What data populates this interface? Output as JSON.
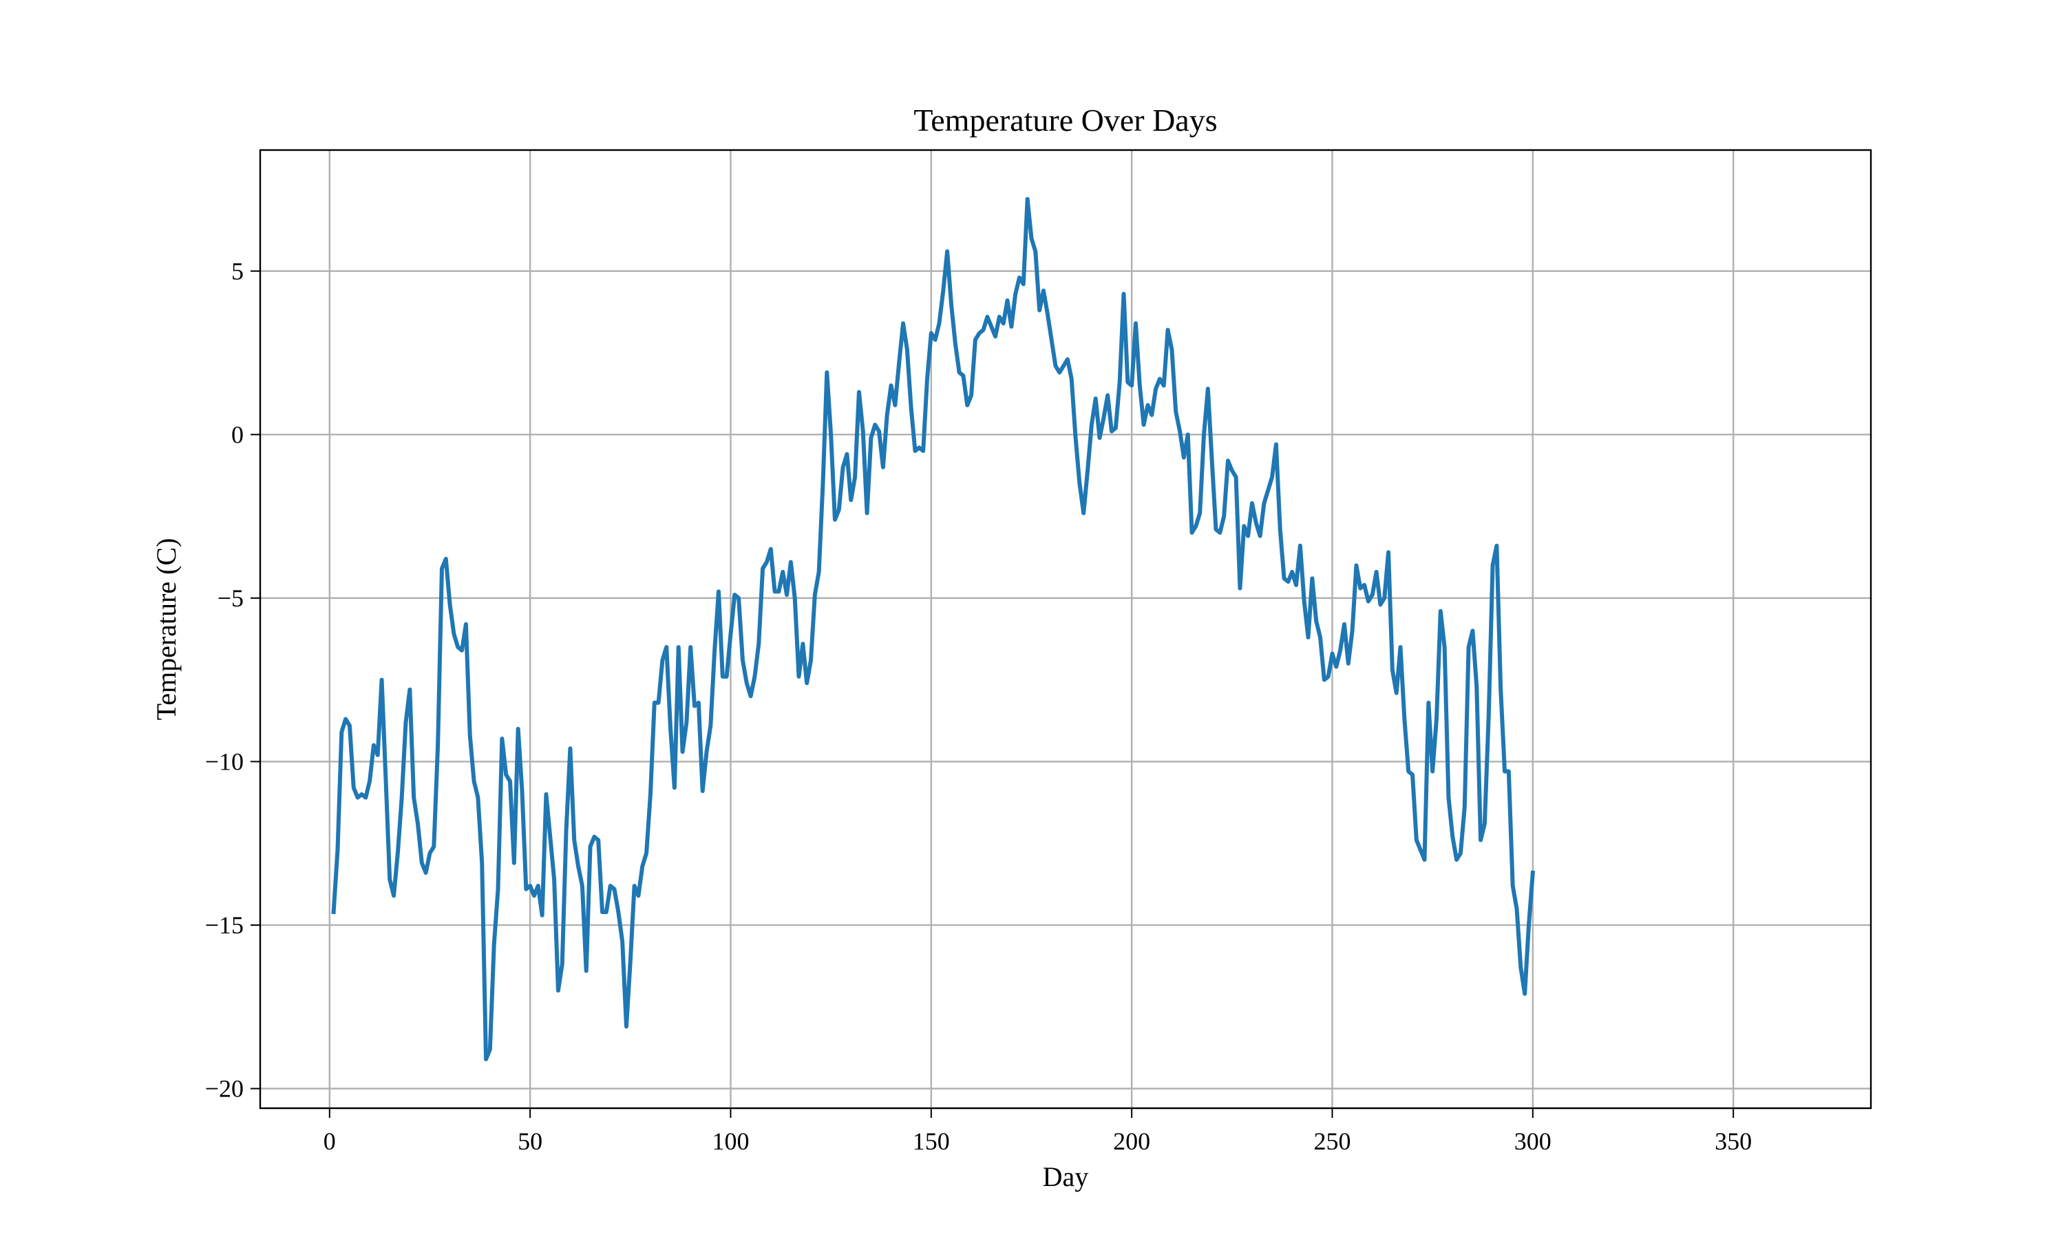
{
  "chart_data": {
    "type": "line",
    "title": "Temperature Over Days",
    "xlabel": "Day",
    "ylabel": "Temperature (C)",
    "xlim": [
      -17.3,
      384.3
    ],
    "ylim": [
      -20.6,
      8.7
    ],
    "xticks": [
      0,
      50,
      100,
      150,
      200,
      250,
      300,
      350
    ],
    "yticks": [
      -20,
      -15,
      -10,
      -5,
      0,
      5
    ],
    "ytick_labels": [
      "−20",
      "−15",
      "−10",
      "−5",
      "0",
      "5"
    ],
    "grid": true,
    "line_color": "#1f77b4",
    "series": [
      {
        "x_start": 1,
        "x_step": 1,
        "values": [
          -14.6,
          -12.7,
          -9.1,
          -8.7,
          -8.9,
          -10.8,
          -11.1,
          -11.0,
          -11.1,
          -10.6,
          -9.5,
          -9.8,
          -7.5,
          -10.5,
          -13.6,
          -14.1,
          -12.8,
          -11.1,
          -8.8,
          -7.8,
          -11.1,
          -11.9,
          -13.1,
          -13.4,
          -12.8,
          -12.6,
          -9.5,
          -4.1,
          -3.8,
          -5.2,
          -6.1,
          -6.5,
          -6.6,
          -5.8,
          -9.2,
          -10.6,
          -11.1,
          -13.1,
          -19.1,
          -18.8,
          -15.6,
          -13.9,
          -9.3,
          -10.4,
          -10.6,
          -13.1,
          -9.0,
          -10.9,
          -13.9,
          -13.8,
          -14.1,
          -13.8,
          -14.7,
          -11.0,
          -12.3,
          -13.6,
          -17.0,
          -16.2,
          -12.1,
          -9.6,
          -12.4,
          -13.2,
          -13.8,
          -16.4,
          -12.6,
          -12.3,
          -12.4,
          -14.6,
          -14.6,
          -13.8,
          -13.9,
          -14.6,
          -15.5,
          -18.1,
          -16.1,
          -13.8,
          -14.1,
          -13.2,
          -12.8,
          -11.0,
          -8.2,
          -8.2,
          -6.9,
          -6.5,
          -9.0,
          -10.8,
          -6.5,
          -9.7,
          -8.8,
          -6.5,
          -8.3,
          -8.2,
          -10.9,
          -9.7,
          -8.9,
          -6.6,
          -4.8,
          -7.4,
          -7.4,
          -6.1,
          -4.9,
          -5.0,
          -6.9,
          -7.6,
          -8.0,
          -7.4,
          -6.4,
          -4.1,
          -3.9,
          -3.5,
          -4.8,
          -4.8,
          -4.2,
          -4.9,
          -3.9,
          -5.0,
          -7.4,
          -6.4,
          -7.6,
          -6.9,
          -4.9,
          -4.2,
          -1.5,
          1.9,
          0.0,
          -2.6,
          -2.3,
          -1.0,
          -0.6,
          -2.0,
          -1.3,
          1.3,
          0.1,
          -2.4,
          -0.1,
          0.3,
          0.1,
          -1.0,
          0.6,
          1.5,
          0.9,
          2.2,
          3.4,
          2.6,
          0.8,
          -0.5,
          -0.4,
          -0.5,
          1.7,
          3.1,
          2.9,
          3.4,
          4.4,
          5.6,
          4.0,
          2.8,
          1.9,
          1.8,
          0.9,
          1.2,
          2.9,
          3.1,
          3.2,
          3.6,
          3.3,
          3.0,
          3.6,
          3.4,
          4.1,
          3.3,
          4.3,
          4.8,
          4.6,
          7.2,
          6.0,
          5.6,
          3.8,
          4.4,
          3.7,
          2.9,
          2.1,
          1.9,
          2.1,
          2.3,
          1.7,
          -0.1,
          -1.5,
          -2.4,
          -1.1,
          0.3,
          1.1,
          -0.1,
          0.5,
          1.2,
          0.1,
          0.2,
          1.6,
          4.3,
          1.6,
          1.5,
          3.4,
          1.5,
          0.3,
          0.9,
          0.6,
          1.4,
          1.7,
          1.5,
          3.2,
          2.6,
          0.7,
          0.1,
          -0.7,
          0.0,
          -3.0,
          -2.8,
          -2.4,
          0.0,
          1.4,
          -0.8,
          -2.9,
          -3.0,
          -2.5,
          -0.8,
          -1.1,
          -1.3,
          -4.7,
          -2.8,
          -3.1,
          -2.1,
          -2.7,
          -3.1,
          -2.1,
          -1.7,
          -1.3,
          -0.3,
          -2.9,
          -4.4,
          -4.5,
          -4.2,
          -4.6,
          -3.4,
          -5.1,
          -6.2,
          -4.4,
          -5.7,
          -6.2,
          -7.5,
          -7.4,
          -6.7,
          -7.1,
          -6.6,
          -5.8,
          -7.0,
          -6.0,
          -4.0,
          -4.7,
          -4.6,
          -5.1,
          -4.9,
          -4.2,
          -5.2,
          -5.0,
          -3.6,
          -7.2,
          -7.9,
          -6.5,
          -8.7,
          -10.3,
          -10.4,
          -12.4,
          -12.7,
          -13.0,
          -8.2,
          -10.3,
          -8.7,
          -5.4,
          -6.5,
          -11.1,
          -12.3,
          -13.0,
          -12.8,
          -11.4,
          -6.5,
          -6.0,
          -7.7,
          -12.4,
          -11.9,
          -8.6,
          -4.0,
          -3.4,
          -7.8,
          -10.3,
          -10.3,
          -13.8,
          -14.5,
          -16.3,
          -17.1,
          -15.0,
          -13.4
        ]
      }
    ]
  }
}
